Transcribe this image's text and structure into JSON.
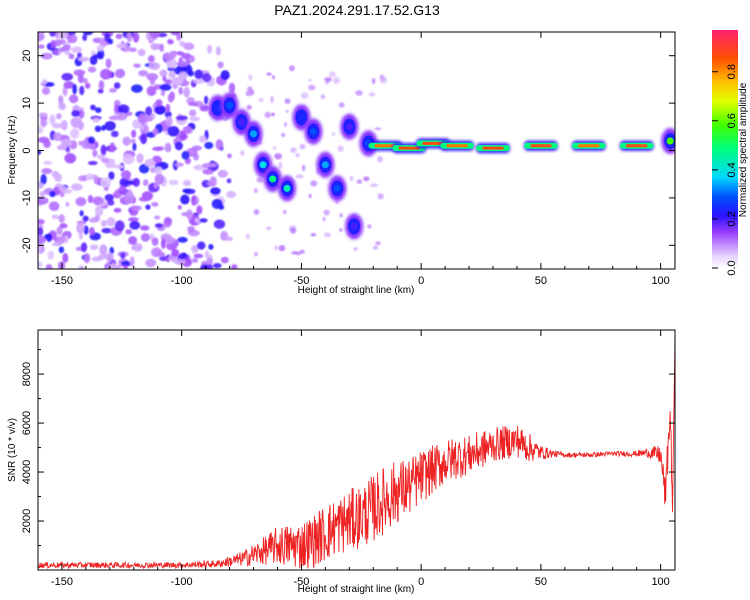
{
  "figure": {
    "title": "PAZ1.2024.291.17.52.G13",
    "colors": {
      "spectral_low": "#e6d2ff",
      "spectral_high": "#ff1f6e",
      "snr_line": "#ee2222"
    }
  },
  "chart_data": [
    {
      "type": "heatmap",
      "name": "spectrogram",
      "xlabel": "Height of straight line (km)",
      "ylabel": "Frequency (Hz)",
      "xlim": [
        -160,
        106
      ],
      "ylim": [
        -25,
        25
      ],
      "xticks": [
        -150,
        -100,
        -50,
        0,
        50,
        100
      ],
      "yticks": [
        -20,
        -10,
        0,
        10,
        20
      ],
      "colorbar": {
        "label": "Normalized spectral amplitude",
        "range": [
          0,
          0.97
        ],
        "ticks": [
          0.0,
          0.2,
          0.4,
          0.6,
          0.8
        ],
        "tick_labels": [
          "0.0",
          "0.2",
          "0.4",
          "0.6",
          "0.8"
        ],
        "colormap": "rainbow-lavender-to-pink"
      },
      "noise_region": {
        "x_range": [
          -160,
          -75
        ],
        "y_range": [
          -25,
          25
        ],
        "amplitude": 0.12
      },
      "signal_track": [
        {
          "x": -85,
          "y": 9,
          "amp": 0.25
        },
        {
          "x": -80,
          "y": 9.5,
          "amp": 0.3
        },
        {
          "x": -75,
          "y": 6,
          "amp": 0.2
        },
        {
          "x": -70,
          "y": 3.5,
          "amp": 0.35
        },
        {
          "x": -66,
          "y": -3,
          "amp": 0.4
        },
        {
          "x": -62,
          "y": -6,
          "amp": 0.5
        },
        {
          "x": -56,
          "y": -8,
          "amp": 0.45
        },
        {
          "x": -50,
          "y": 7,
          "amp": 0.25
        },
        {
          "x": -45,
          "y": 4,
          "amp": 0.3
        },
        {
          "x": -40,
          "y": -3,
          "amp": 0.35
        },
        {
          "x": -35,
          "y": -8,
          "amp": 0.3
        },
        {
          "x": -28,
          "y": -16,
          "amp": 0.2
        },
        {
          "x": -30,
          "y": 5,
          "amp": 0.2
        },
        {
          "x": -22,
          "y": 1.5,
          "amp": 0.3
        },
        {
          "x": -15,
          "y": 1,
          "amp": 0.85
        },
        {
          "x": -5,
          "y": 0.5,
          "amp": 0.9
        },
        {
          "x": 5,
          "y": 1.5,
          "amp": 0.9
        },
        {
          "x": 15,
          "y": 1,
          "amp": 0.85
        },
        {
          "x": 30,
          "y": 0.5,
          "amp": 0.9
        },
        {
          "x": 50,
          "y": 1,
          "amp": 0.9
        },
        {
          "x": 70,
          "y": 1,
          "amp": 0.85
        },
        {
          "x": 90,
          "y": 1,
          "amp": 0.9
        },
        {
          "x": 104,
          "y": 2,
          "amp": 0.6
        }
      ]
    },
    {
      "type": "line",
      "name": "snr",
      "xlabel": "Height of straight line (km)",
      "ylabel": "SNR (10 * v/v)",
      "xlim": [
        -160,
        106
      ],
      "ylim": [
        0,
        9800
      ],
      "xticks": [
        -150,
        -100,
        -50,
        0,
        50,
        100
      ],
      "yticks": [
        2000,
        4000,
        6000,
        8000
      ],
      "series": [
        {
          "x": [
            -160,
            -140,
            -120,
            -100,
            -85,
            -75,
            -65,
            -60,
            -55,
            -50,
            -45,
            -40,
            -35,
            -30,
            -25,
            -20,
            -15,
            -10,
            -5,
            0,
            5,
            10,
            15,
            20,
            25,
            30,
            35,
            40,
            45,
            50,
            55,
            60,
            70,
            80,
            90,
            95,
            100,
            102,
            104,
            105,
            106
          ],
          "mean": [
            200,
            200,
            200,
            200,
            250,
            450,
            800,
            1000,
            1000,
            1000,
            1200,
            1500,
            1800,
            2000,
            2200,
            2500,
            2900,
            3200,
            3400,
            3800,
            4100,
            4400,
            4600,
            4700,
            4900,
            5100,
            5200,
            5300,
            5000,
            4800,
            4750,
            4700,
            4700,
            4750,
            4750,
            4800,
            4700,
            3000,
            6500,
            2500,
            9600
          ],
          "spread": [
            120,
            120,
            120,
            120,
            150,
            300,
            600,
            800,
            900,
            1000,
            1100,
            1200,
            1200,
            1300,
            1300,
            1400,
            1400,
            1300,
            1200,
            1100,
            1000,
            900,
            900,
            800,
            800,
            700,
            700,
            700,
            600,
            300,
            150,
            100,
            100,
            100,
            120,
            200,
            400,
            800,
            800,
            500,
            200
          ]
        }
      ]
    }
  ]
}
